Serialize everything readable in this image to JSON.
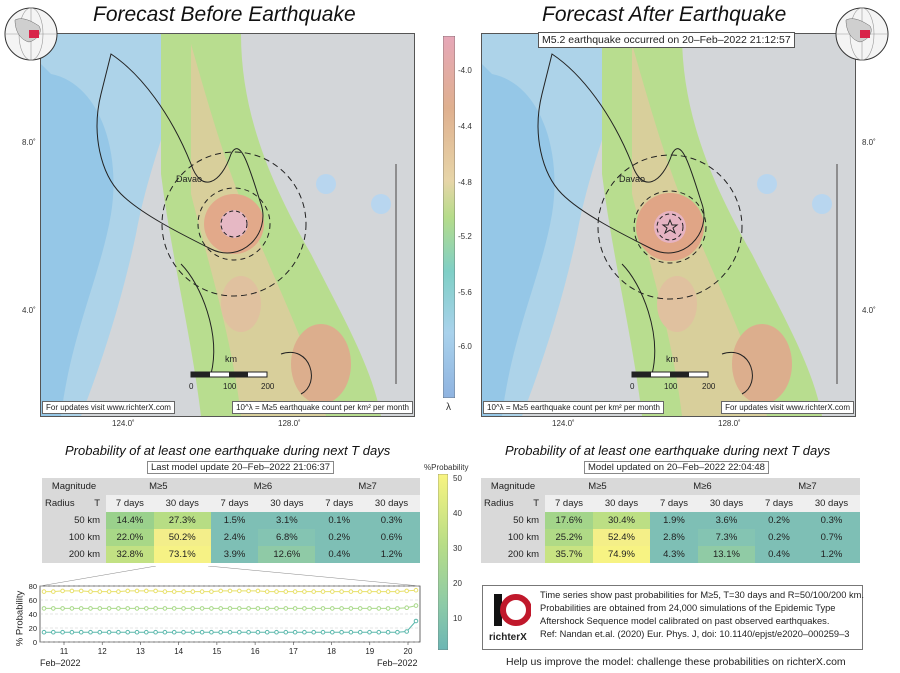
{
  "left_panel": {
    "title": "Forecast Before Earthquake",
    "city_label": "Davao",
    "scale_unit": "km",
    "scale_ticks": [
      "0",
      "100",
      "200"
    ],
    "footer_left": "For updates visit www.richterX.com",
    "footer_right": "10^λ = M≥5 earthquake count per km² per month"
  },
  "right_panel": {
    "title": "Forecast After Earthquake",
    "event_note": "M5.2 earthquake occurred on 20–Feb–2022 21:12:57",
    "city_label": "Davao",
    "scale_unit": "km",
    "scale_ticks": [
      "0",
      "100",
      "200"
    ],
    "footer_left": "10^λ = M≥5 earthquake count per km² per month",
    "footer_right": "For updates visit www.richterX.com"
  },
  "map_axes": {
    "lat_labels": [
      "8.0˚",
      "4.0˚"
    ],
    "lon_labels": [
      "124.0˚",
      "128.0˚"
    ]
  },
  "colorbar_lambda": {
    "ticks": [
      "-4.0",
      "-4.4",
      "-4.8",
      "-5.2",
      "-5.6",
      "-6.0"
    ],
    "symbol": "λ"
  },
  "left_table": {
    "title": "Probability of at least one earthquake during next T days",
    "update": "Last model update 20–Feb–2022 21:06:37",
    "header_magnitude": "Magnitude",
    "header_radius": "Radius",
    "header_t": "T",
    "magnitudes": [
      "M≥5",
      "M≥6",
      "M≥7"
    ],
    "periods": [
      "7 days",
      "30 days",
      "7 days",
      "30 days",
      "7 days",
      "30 days"
    ],
    "rows": [
      {
        "radius": "50 km",
        "values": [
          "14.4%",
          "27.3%",
          "1.5%",
          "3.1%",
          "0.1%",
          "0.3%"
        ]
      },
      {
        "radius": "100 km",
        "values": [
          "22.0%",
          "50.2%",
          "2.4%",
          "6.8%",
          "0.2%",
          "0.6%"
        ]
      },
      {
        "radius": "200 km",
        "values": [
          "32.8%",
          "73.1%",
          "3.9%",
          "12.6%",
          "0.4%",
          "1.2%"
        ]
      }
    ]
  },
  "right_table": {
    "title": "Probability of at least one earthquake during next T days",
    "update": "Model updated on 20–Feb–2022 22:04:48",
    "header_magnitude": "Magnitude",
    "header_radius": "Radius",
    "header_t": "T",
    "magnitudes": [
      "M≥5",
      "M≥6",
      "M≥7"
    ],
    "periods": [
      "7 days",
      "30 days",
      "7 days",
      "30 days",
      "7 days",
      "30 days"
    ],
    "rows": [
      {
        "radius": "50 km",
        "values": [
          "17.6%",
          "30.4%",
          "1.9%",
          "3.6%",
          "0.2%",
          "0.3%"
        ]
      },
      {
        "radius": "100 km",
        "values": [
          "25.2%",
          "52.4%",
          "2.8%",
          "7.3%",
          "0.2%",
          "0.7%"
        ]
      },
      {
        "radius": "200 km",
        "values": [
          "35.7%",
          "74.9%",
          "4.3%",
          "13.1%",
          "0.4%",
          "1.2%"
        ]
      }
    ]
  },
  "prob_colorbar": {
    "label": "%Probability",
    "ticks": [
      "50",
      "40",
      "30",
      "20",
      "10"
    ]
  },
  "info": {
    "lines": [
      "Time series show past probabilities for M≥5, T=30 days and R=50/100/200 km.",
      "Probabilities are obtained from 24,000 simulations of the Epidemic Type",
      "Aftershock Sequence model calibrated on past observed earthquakes.",
      "Ref: Nandan et.al. (2020) Eur. Phys. J, doi: 10.1140/epjst/e2020–000259–3"
    ],
    "logo_text": "richterX"
  },
  "help_text": "Help us improve the model: challenge these probabilities on richterX.com",
  "chart_data": {
    "type": "line",
    "ylabel": "% Probability",
    "ylim": [
      0,
      80
    ],
    "yticks": [
      "80",
      "60",
      "40",
      "20",
      "0"
    ],
    "x_tick_labels": [
      "11",
      "12",
      "13",
      "14",
      "15",
      "16",
      "17",
      "18",
      "19",
      "20"
    ],
    "x_start_label": "Feb–2022",
    "x_end_label": "Feb–2022",
    "series": [
      {
        "name": "",
        "color": "#e8e06a",
        "values": [
          72,
          72,
          73,
          73,
          73,
          72,
          72,
          72,
          72,
          73,
          73,
          73,
          73,
          72,
          72,
          72,
          72,
          72,
          72,
          73,
          73,
          73,
          73,
          73,
          72,
          72,
          72,
          72,
          72,
          72,
          72,
          72,
          72,
          72,
          72,
          72,
          72,
          72,
          72,
          73,
          74
        ]
      },
      {
        "name": "",
        "color": "#a9d98a",
        "values": [
          48,
          48,
          48,
          48,
          48,
          48,
          48,
          48,
          48,
          48,
          48,
          48,
          48,
          48,
          48,
          48,
          48,
          48,
          48,
          48,
          48,
          48,
          48,
          48,
          48,
          48,
          48,
          48,
          48,
          48,
          48,
          48,
          48,
          48,
          48,
          48,
          48,
          48,
          48,
          49,
          52
        ]
      },
      {
        "name": "",
        "color": "#5ab8ac",
        "values": [
          14,
          14,
          14,
          14,
          14,
          14,
          14,
          14,
          14,
          14,
          14,
          14,
          14,
          14,
          14,
          14,
          14,
          14,
          14,
          14,
          14,
          14,
          14,
          14,
          14,
          14,
          14,
          14,
          14,
          14,
          14,
          14,
          14,
          14,
          14,
          14,
          14,
          14,
          14,
          15,
          30
        ]
      }
    ]
  }
}
